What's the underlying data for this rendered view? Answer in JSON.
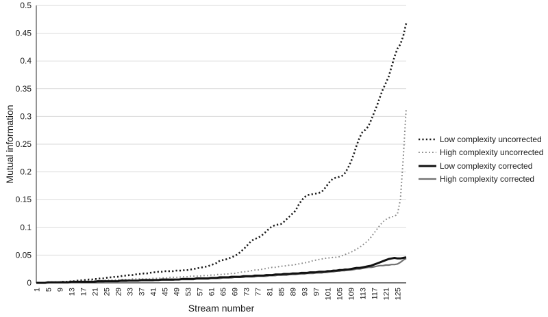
{
  "figure": {
    "background": "#ffffff"
  },
  "colors": {
    "grid": "#d9d9d9",
    "axis": "#4d4d4d",
    "text": "#1a1a1a",
    "accent_black": "#1a1a1a",
    "accent_gray": "#8c8c8c"
  },
  "axes": {
    "y_ticks": [
      "0",
      "0.05",
      "0.1",
      "0.15",
      "0.2",
      "0.25",
      "0.3",
      "0.35",
      "0.4",
      "0.45",
      "0.5"
    ],
    "x_ticks": [
      "1",
      "5",
      "9",
      "13",
      "17",
      "21",
      "25",
      "29",
      "33",
      "37",
      "41",
      "45",
      "49",
      "53",
      "57",
      "61",
      "65",
      "69",
      "73",
      "77",
      "81",
      "85",
      "89",
      "93",
      "97",
      "101",
      "105",
      "109",
      "113",
      "117",
      "121",
      "125"
    ]
  },
  "chart_data": {
    "type": "line",
    "title": "",
    "xlabel": "Stream number",
    "ylabel": "Mutual information",
    "x_range": [
      1,
      128
    ],
    "ylim": [
      0,
      0.5
    ],
    "grid": "horizontal-only",
    "legend_position": "right-middle",
    "y_tick_values": [
      0,
      0.05,
      0.1,
      0.15,
      0.2,
      0.25,
      0.3,
      0.35,
      0.4,
      0.45,
      0.5
    ],
    "x_tick_streams": [
      1,
      5,
      9,
      13,
      17,
      21,
      25,
      29,
      33,
      37,
      41,
      45,
      49,
      53,
      57,
      61,
      65,
      69,
      73,
      77,
      81,
      85,
      89,
      93,
      97,
      101,
      105,
      109,
      113,
      117,
      121,
      125
    ],
    "series": [
      {
        "id": "low-complexity-uncorrected",
        "name": "Low complexity uncorrected",
        "style": "dotted",
        "color": "#1a1a1a",
        "width": 2.6,
        "dash": "2.2 3.2",
        "z": 1,
        "values": [
          0.0,
          0.0,
          0.0,
          0.0,
          0.001,
          0.001,
          0.001,
          0.001,
          0.001,
          0.002,
          0.002,
          0.002,
          0.003,
          0.003,
          0.004,
          0.004,
          0.005,
          0.005,
          0.006,
          0.006,
          0.007,
          0.007,
          0.008,
          0.008,
          0.009,
          0.01,
          0.01,
          0.011,
          0.011,
          0.012,
          0.013,
          0.013,
          0.014,
          0.014,
          0.015,
          0.016,
          0.016,
          0.017,
          0.017,
          0.018,
          0.019,
          0.019,
          0.02,
          0.02,
          0.021,
          0.021,
          0.021,
          0.021,
          0.022,
          0.022,
          0.022,
          0.023,
          0.023,
          0.024,
          0.025,
          0.026,
          0.027,
          0.028,
          0.029,
          0.03,
          0.032,
          0.034,
          0.036,
          0.04,
          0.041,
          0.042,
          0.044,
          0.046,
          0.048,
          0.051,
          0.055,
          0.06,
          0.065,
          0.071,
          0.076,
          0.079,
          0.081,
          0.084,
          0.088,
          0.093,
          0.098,
          0.102,
          0.104,
          0.105,
          0.106,
          0.11,
          0.115,
          0.12,
          0.125,
          0.13,
          0.14,
          0.148,
          0.154,
          0.158,
          0.159,
          0.16,
          0.161,
          0.162,
          0.164,
          0.17,
          0.177,
          0.184,
          0.188,
          0.19,
          0.191,
          0.193,
          0.198,
          0.207,
          0.218,
          0.232,
          0.248,
          0.262,
          0.272,
          0.276,
          0.282,
          0.294,
          0.307,
          0.32,
          0.335,
          0.349,
          0.36,
          0.372,
          0.39,
          0.408,
          0.422,
          0.43,
          0.445,
          0.468
        ]
      },
      {
        "id": "high-complexity-uncorrected",
        "name": "High complexity  uncorrected",
        "style": "dotted",
        "color": "#8c8c8c",
        "width": 2,
        "dash": "1.8 3.2",
        "z": 2,
        "values": [
          0.0,
          0.0,
          0.0,
          0.0,
          0.001,
          0.001,
          0.001,
          0.001,
          0.002,
          0.002,
          0.002,
          0.002,
          0.002,
          0.003,
          0.003,
          0.003,
          0.003,
          0.003,
          0.003,
          0.003,
          0.004,
          0.004,
          0.004,
          0.004,
          0.005,
          0.005,
          0.005,
          0.005,
          0.006,
          0.006,
          0.006,
          0.006,
          0.006,
          0.007,
          0.007,
          0.007,
          0.007,
          0.007,
          0.007,
          0.007,
          0.008,
          0.008,
          0.008,
          0.009,
          0.009,
          0.009,
          0.01,
          0.01,
          0.01,
          0.01,
          0.011,
          0.011,
          0.011,
          0.012,
          0.012,
          0.012,
          0.012,
          0.013,
          0.013,
          0.013,
          0.014,
          0.014,
          0.015,
          0.015,
          0.015,
          0.016,
          0.016,
          0.017,
          0.017,
          0.018,
          0.019,
          0.02,
          0.02,
          0.021,
          0.022,
          0.023,
          0.023,
          0.024,
          0.025,
          0.026,
          0.027,
          0.028,
          0.028,
          0.029,
          0.03,
          0.03,
          0.031,
          0.032,
          0.032,
          0.033,
          0.034,
          0.035,
          0.036,
          0.037,
          0.038,
          0.04,
          0.041,
          0.042,
          0.043,
          0.044,
          0.045,
          0.045,
          0.046,
          0.046,
          0.047,
          0.049,
          0.051,
          0.053,
          0.055,
          0.058,
          0.061,
          0.064,
          0.068,
          0.072,
          0.077,
          0.083,
          0.09,
          0.097,
          0.104,
          0.11,
          0.114,
          0.117,
          0.119,
          0.12,
          0.124,
          0.15,
          0.225,
          0.315
        ]
      },
      {
        "id": "low-complexity-corrected",
        "name": "Low complexity corrected",
        "style": "solid",
        "color": "#111111",
        "width": 3,
        "dash": "",
        "z": 4,
        "values": [
          0.0,
          0.0,
          0.0,
          0.0,
          0.001,
          0.001,
          0.001,
          0.001,
          0.001,
          0.001,
          0.001,
          0.001,
          0.002,
          0.002,
          0.002,
          0.002,
          0.002,
          0.002,
          0.002,
          0.002,
          0.002,
          0.003,
          0.003,
          0.003,
          0.003,
          0.003,
          0.003,
          0.003,
          0.003,
          0.004,
          0.004,
          0.004,
          0.004,
          0.004,
          0.004,
          0.004,
          0.005,
          0.005,
          0.005,
          0.005,
          0.005,
          0.005,
          0.005,
          0.006,
          0.006,
          0.006,
          0.006,
          0.006,
          0.006,
          0.006,
          0.007,
          0.007,
          0.007,
          0.007,
          0.007,
          0.008,
          0.008,
          0.008,
          0.008,
          0.008,
          0.009,
          0.009,
          0.009,
          0.01,
          0.01,
          0.01,
          0.01,
          0.011,
          0.011,
          0.011,
          0.011,
          0.012,
          0.012,
          0.012,
          0.012,
          0.013,
          0.013,
          0.013,
          0.013,
          0.014,
          0.014,
          0.014,
          0.015,
          0.015,
          0.015,
          0.016,
          0.016,
          0.016,
          0.017,
          0.017,
          0.017,
          0.018,
          0.018,
          0.018,
          0.019,
          0.019,
          0.019,
          0.02,
          0.02,
          0.02,
          0.021,
          0.021,
          0.022,
          0.022,
          0.023,
          0.023,
          0.024,
          0.024,
          0.025,
          0.026,
          0.027,
          0.027,
          0.028,
          0.029,
          0.03,
          0.031,
          0.033,
          0.035,
          0.037,
          0.039,
          0.041,
          0.043,
          0.044,
          0.045,
          0.044,
          0.044,
          0.045,
          0.046
        ]
      },
      {
        "id": "high-complexity-corrected",
        "name": "High complexity corrected",
        "style": "solid",
        "color": "#707070",
        "width": 2.2,
        "dash": "",
        "z": 3,
        "values": [
          0.0,
          0.0,
          0.0,
          0.0,
          0.0,
          0.001,
          0.001,
          0.001,
          0.001,
          0.001,
          0.001,
          0.001,
          0.001,
          0.001,
          0.001,
          0.001,
          0.002,
          0.002,
          0.002,
          0.002,
          0.002,
          0.002,
          0.002,
          0.002,
          0.003,
          0.003,
          0.003,
          0.003,
          0.003,
          0.003,
          0.003,
          0.003,
          0.004,
          0.004,
          0.004,
          0.004,
          0.004,
          0.004,
          0.004,
          0.004,
          0.004,
          0.005,
          0.005,
          0.005,
          0.005,
          0.005,
          0.005,
          0.005,
          0.006,
          0.006,
          0.006,
          0.006,
          0.006,
          0.006,
          0.006,
          0.007,
          0.007,
          0.007,
          0.007,
          0.007,
          0.008,
          0.008,
          0.008,
          0.008,
          0.009,
          0.009,
          0.009,
          0.009,
          0.01,
          0.01,
          0.01,
          0.01,
          0.011,
          0.011,
          0.011,
          0.011,
          0.012,
          0.012,
          0.012,
          0.012,
          0.013,
          0.013,
          0.013,
          0.014,
          0.014,
          0.014,
          0.014,
          0.015,
          0.015,
          0.015,
          0.016,
          0.016,
          0.016,
          0.017,
          0.017,
          0.017,
          0.018,
          0.018,
          0.018,
          0.019,
          0.019,
          0.02,
          0.02,
          0.021,
          0.021,
          0.022,
          0.022,
          0.023,
          0.023,
          0.024,
          0.025,
          0.025,
          0.026,
          0.027,
          0.028,
          0.028,
          0.029,
          0.03,
          0.031,
          0.031,
          0.032,
          0.032,
          0.033,
          0.033,
          0.034,
          0.037,
          0.041,
          0.044
        ]
      }
    ]
  }
}
